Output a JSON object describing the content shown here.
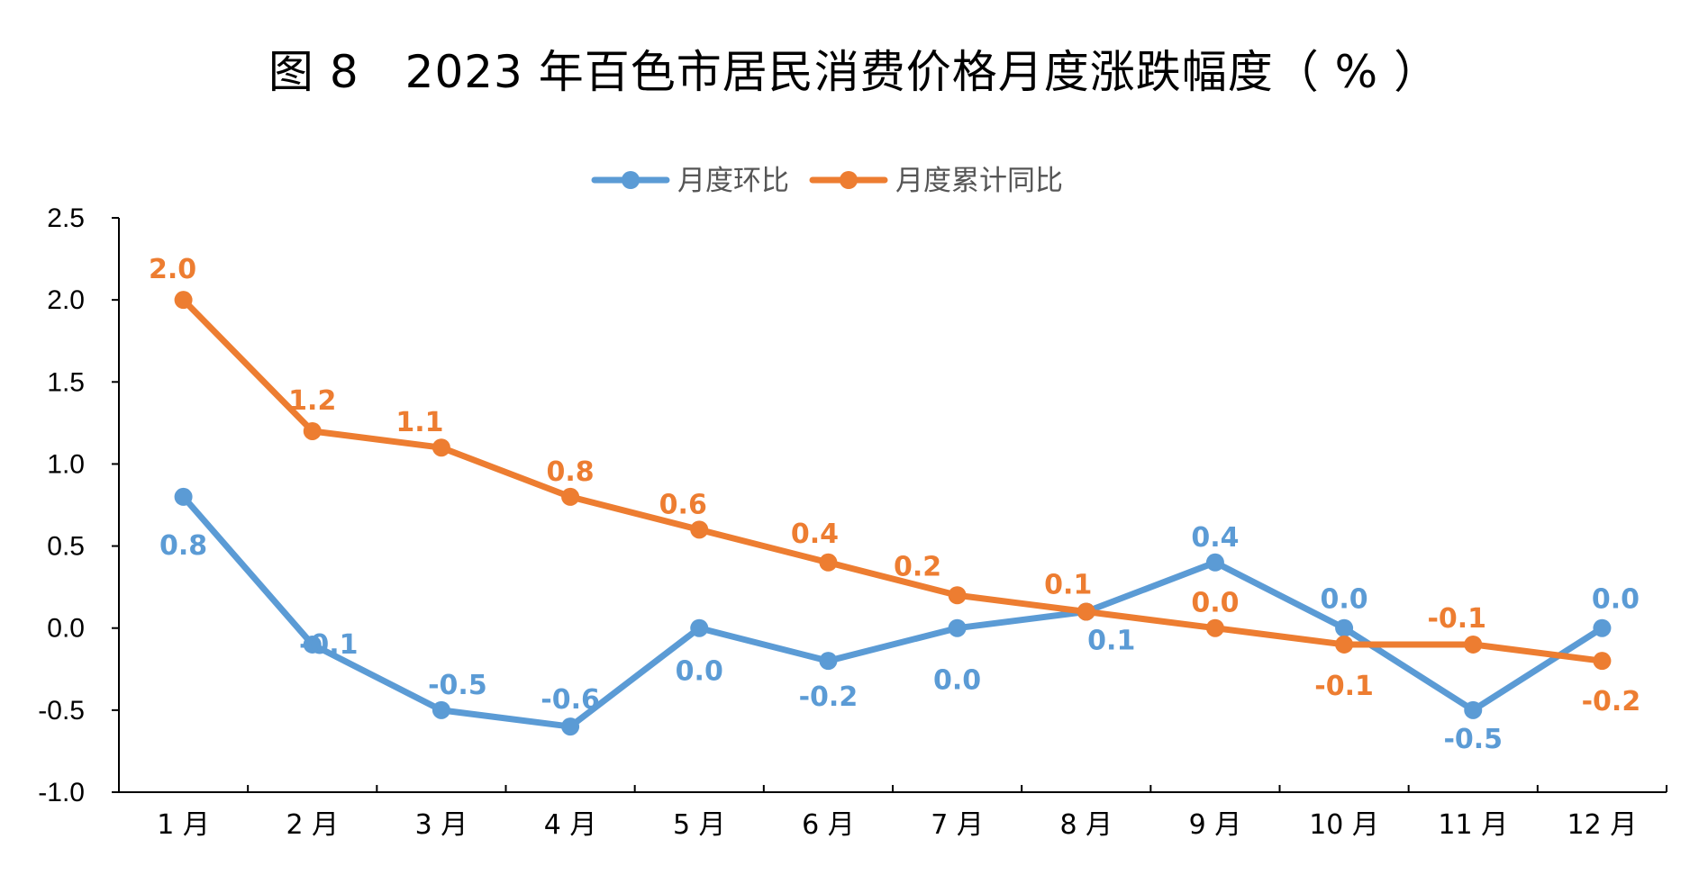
{
  "title": "图 8　2023 年百色市居民消费价格月度涨跌幅度（ % ）",
  "colors": {
    "series1": "#5b9bd5",
    "series2": "#ed7d31",
    "axis": "#000000"
  },
  "chart_data": {
    "type": "line",
    "categories": [
      "1 月",
      "2 月",
      "3 月",
      "4 月",
      "5 月",
      "6 月",
      "7 月",
      "8 月",
      "9 月",
      "10 月",
      "11 月",
      "12 月"
    ],
    "ylim": [
      -1.0,
      2.5
    ],
    "yticks": [
      "2.5",
      "2.0",
      "1.5",
      "1.0",
      "0.5",
      "0.0",
      "-0.5",
      "-1.0"
    ],
    "ytick_values": [
      2.5,
      2.0,
      1.5,
      1.0,
      0.5,
      0.0,
      -0.5,
      -1.0
    ],
    "grid": false,
    "legend_position": "top-center",
    "series": [
      {
        "name": "月度环比",
        "values": [
          0.8,
          -0.1,
          -0.5,
          -0.6,
          0.0,
          -0.2,
          0.0,
          0.1,
          0.4,
          0.0,
          -0.5,
          0.0
        ],
        "labels": [
          "0.8",
          "-0.1",
          "-0.5",
          "-0.6",
          "0.0",
          "-0.2",
          "0.0",
          "0.1",
          "0.4",
          "0.0",
          "-0.5",
          "0.0"
        ]
      },
      {
        "name": "月度累计同比",
        "values": [
          2.0,
          1.2,
          1.1,
          0.8,
          0.6,
          0.4,
          0.2,
          0.1,
          0.0,
          -0.1,
          -0.1,
          -0.2
        ],
        "labels": [
          "2.0",
          "1.2",
          "1.1",
          "0.8",
          "0.6",
          "0.4",
          "0.2",
          "0.1",
          "0.0",
          "-0.1",
          "-0.1",
          "-0.2"
        ]
      }
    ]
  }
}
